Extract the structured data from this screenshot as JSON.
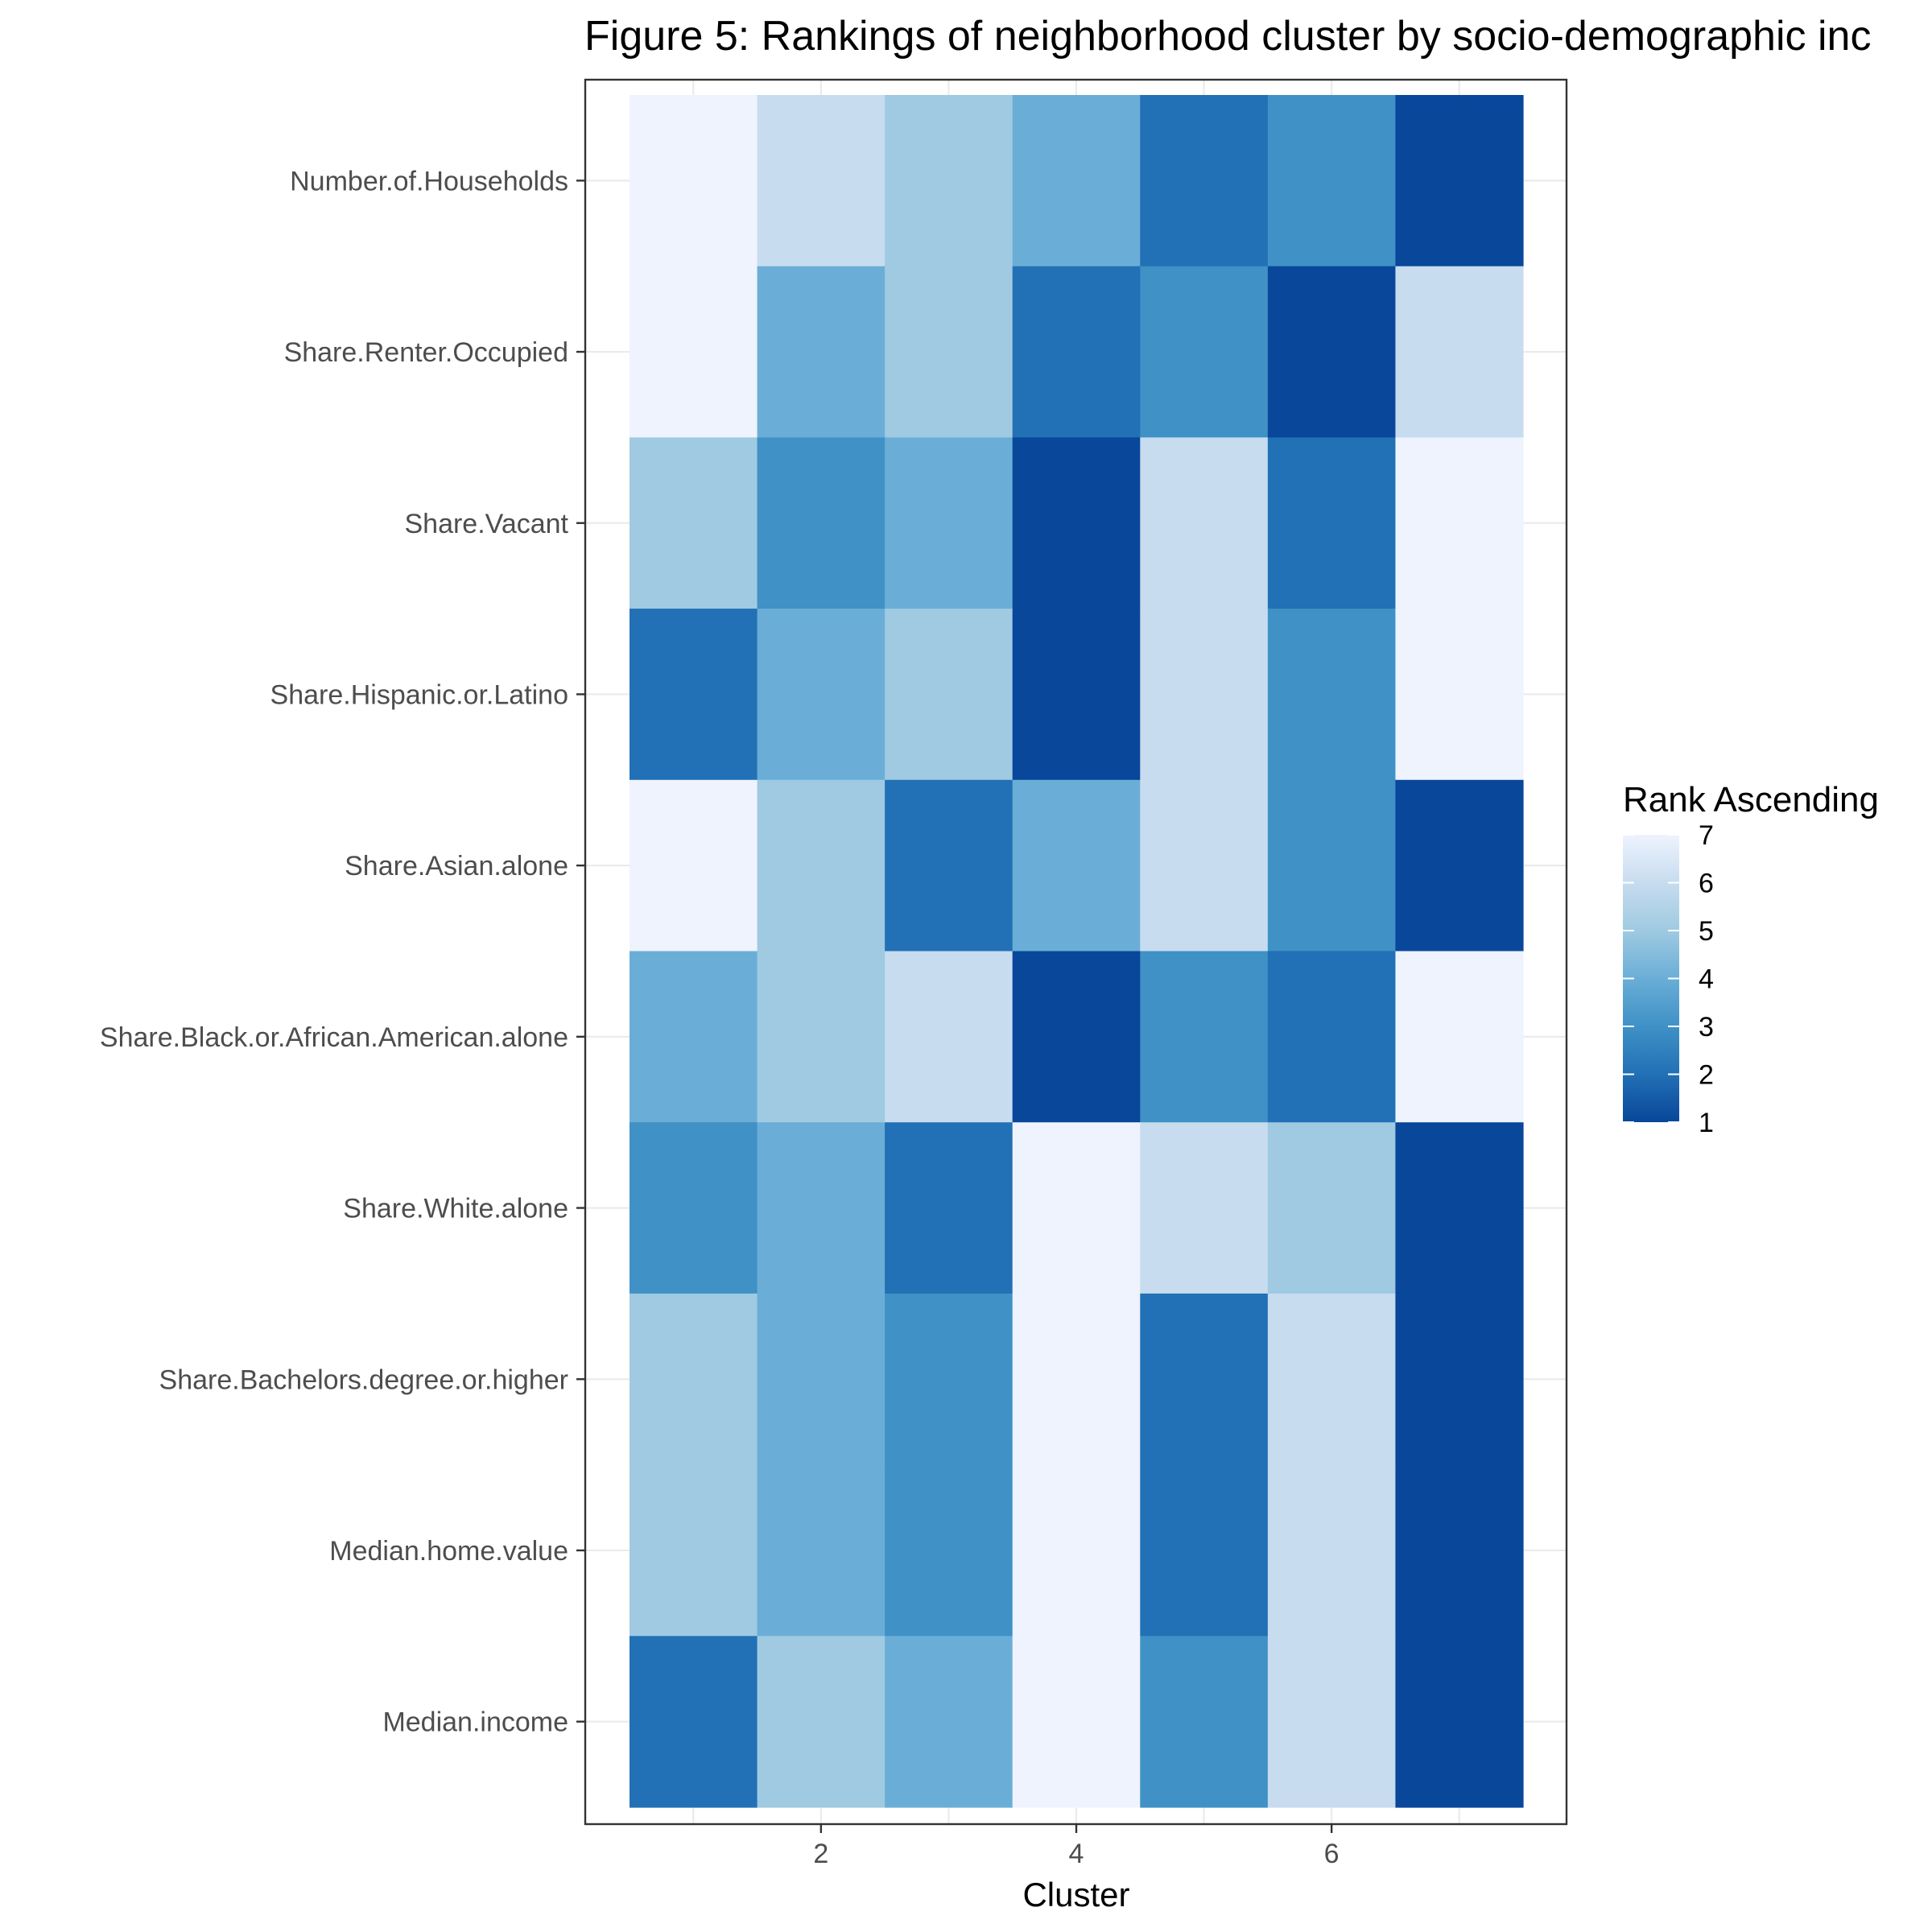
{
  "chart_data": {
    "type": "heatmap",
    "title": "Figure 5: Rankings of neighborhood cluster by socio-demographic inc",
    "xlabel": "Cluster",
    "ylabel": "",
    "x": [
      1,
      2,
      3,
      4,
      5,
      6,
      7
    ],
    "x_tick_labels": [
      "2",
      "4",
      "6"
    ],
    "x_tick_values": [
      2,
      4,
      6
    ],
    "rows": [
      "Number.of.Households",
      "Share.Renter.Occupied",
      "Share.Vacant",
      "Share.Hispanic.or.Latino",
      "Share.Asian.alone",
      "Share.Black.or.African.American.alone",
      "Share.White.alone",
      "Share.Bachelors.degree.or.higher",
      "Median.home.value",
      "Median.income"
    ],
    "values": [
      [
        7,
        6,
        5,
        4,
        2,
        3,
        1
      ],
      [
        7,
        4,
        5,
        2,
        3,
        1,
        6
      ],
      [
        5,
        3,
        4,
        1,
        6,
        2,
        7
      ],
      [
        2,
        4,
        5,
        1,
        6,
        3,
        7
      ],
      [
        7,
        5,
        2,
        4,
        6,
        3,
        1
      ],
      [
        4,
        5,
        6,
        1,
        3,
        2,
        7
      ],
      [
        3,
        4,
        2,
        7,
        6,
        5,
        1
      ],
      [
        5,
        4,
        3,
        7,
        2,
        6,
        1
      ],
      [
        5,
        4,
        3,
        7,
        2,
        6,
        1
      ],
      [
        2,
        5,
        4,
        7,
        3,
        6,
        1
      ]
    ],
    "legend": {
      "title": "Rank Ascending",
      "labels": [
        "7",
        "6",
        "5",
        "4",
        "3",
        "2",
        "1"
      ],
      "values": [
        7,
        6,
        5,
        4,
        3,
        2,
        1
      ],
      "placement": "right"
    },
    "color_scale": {
      "1": "#08479a",
      "2": "#2270b5",
      "3": "#3f91c6",
      "4": "#6aaed7",
      "5": "#9fcae1",
      "6": "#c7dcef",
      "7": "#eef3fe"
    },
    "grid": true,
    "xlim": [
      0.5,
      7.5
    ]
  }
}
